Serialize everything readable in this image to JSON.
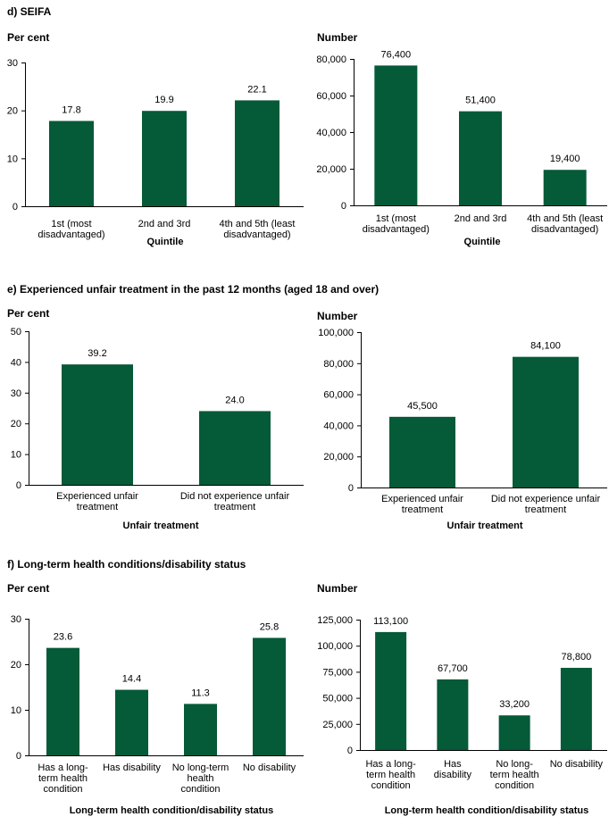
{
  "sections": [
    {
      "title": "d) SEIFA"
    },
    {
      "title": "e) Experienced unfair treatment in the past 12 months (aged 18 and over)"
    },
    {
      "title": "f) Long-term health conditions/disability status"
    }
  ],
  "colors": {
    "bar": "#055a38",
    "axis": "#000000"
  },
  "chart_data": [
    {
      "type": "bar",
      "unit_label": "Per cent",
      "categories": [
        [
          "1st (most",
          "disadvantaged)"
        ],
        [
          "2nd and 3rd"
        ],
        [
          "4th and 5th (least",
          "disadvantaged)"
        ]
      ],
      "values": [
        17.8,
        19.9,
        22.1
      ],
      "labels": [
        "17.8",
        "19.9",
        "22.1"
      ],
      "xlabel": "Quintile",
      "ylim": [
        0,
        30
      ],
      "yticks": [
        "0",
        "10",
        "20",
        "30"
      ],
      "ytick_values": [
        0,
        10,
        20,
        30
      ]
    },
    {
      "type": "bar",
      "unit_label": "Number",
      "categories": [
        [
          "1st (most",
          "disadvantaged)"
        ],
        [
          "2nd and 3rd"
        ],
        [
          "4th and 5th (least",
          "disadvantaged)"
        ]
      ],
      "values": [
        76400,
        51400,
        19400
      ],
      "labels": [
        "76,400",
        "51,400",
        "19,400"
      ],
      "xlabel": "Quintile",
      "ylim": [
        0,
        80000
      ],
      "yticks": [
        "0",
        "20,000",
        "40,000",
        "60,000",
        "80,000"
      ],
      "ytick_values": [
        0,
        20000,
        40000,
        60000,
        80000
      ]
    },
    {
      "type": "bar",
      "unit_label": "Per cent",
      "categories": [
        [
          "Experienced unfair",
          "treatment"
        ],
        [
          "Did not experience unfair",
          "treatment"
        ]
      ],
      "values": [
        39.2,
        24.0
      ],
      "labels": [
        "39.2",
        "24.0"
      ],
      "xlabel": "Unfair treatment",
      "ylim": [
        0,
        50
      ],
      "yticks": [
        "0",
        "10",
        "20",
        "30",
        "40",
        "50"
      ],
      "ytick_values": [
        0,
        10,
        20,
        30,
        40,
        50
      ]
    },
    {
      "type": "bar",
      "unit_label": "Number",
      "categories": [
        [
          "Experienced unfair",
          "treatment"
        ],
        [
          "Did not experience unfair",
          "treatment"
        ]
      ],
      "values": [
        45500,
        84100
      ],
      "labels": [
        "45,500",
        "84,100"
      ],
      "xlabel": "Unfair treatment",
      "ylim": [
        0,
        100000
      ],
      "yticks": [
        "0",
        "20,000",
        "40,000",
        "60,000",
        "80,000",
        "100,000"
      ],
      "ytick_values": [
        0,
        20000,
        40000,
        60000,
        80000,
        100000
      ]
    },
    {
      "type": "bar",
      "unit_label": "Per cent",
      "categories": [
        [
          "Has a long-",
          "term health",
          "condition"
        ],
        [
          "Has disability"
        ],
        [
          "No long-term",
          "health",
          "condition"
        ],
        [
          "No disability"
        ]
      ],
      "values": [
        23.6,
        14.4,
        11.3,
        25.8
      ],
      "labels": [
        "23.6",
        "14.4",
        "11.3",
        "25.8"
      ],
      "xlabel": "Long-term health condition/disability status",
      "ylim": [
        0,
        30
      ],
      "yticks": [
        "0",
        "10",
        "20",
        "30"
      ],
      "ytick_values": [
        0,
        10,
        20,
        30
      ]
    },
    {
      "type": "bar",
      "unit_label": "Number",
      "categories": [
        [
          "Has a long-",
          "term health",
          "condition"
        ],
        [
          "Has",
          "disability"
        ],
        [
          "No long-",
          "term health",
          "condition"
        ],
        [
          "No disability"
        ]
      ],
      "values": [
        113100,
        67700,
        33200,
        78800
      ],
      "labels": [
        "113,100",
        "67,700",
        "33,200",
        "78,800"
      ],
      "xlabel": "Long-term health condition/disability status",
      "ylim": [
        0,
        125000
      ],
      "yticks": [
        "0",
        "25,000",
        "50,000",
        "75,000",
        "100,000",
        "125,000"
      ],
      "ytick_values": [
        0,
        25000,
        50000,
        75000,
        100000,
        125000
      ]
    }
  ]
}
